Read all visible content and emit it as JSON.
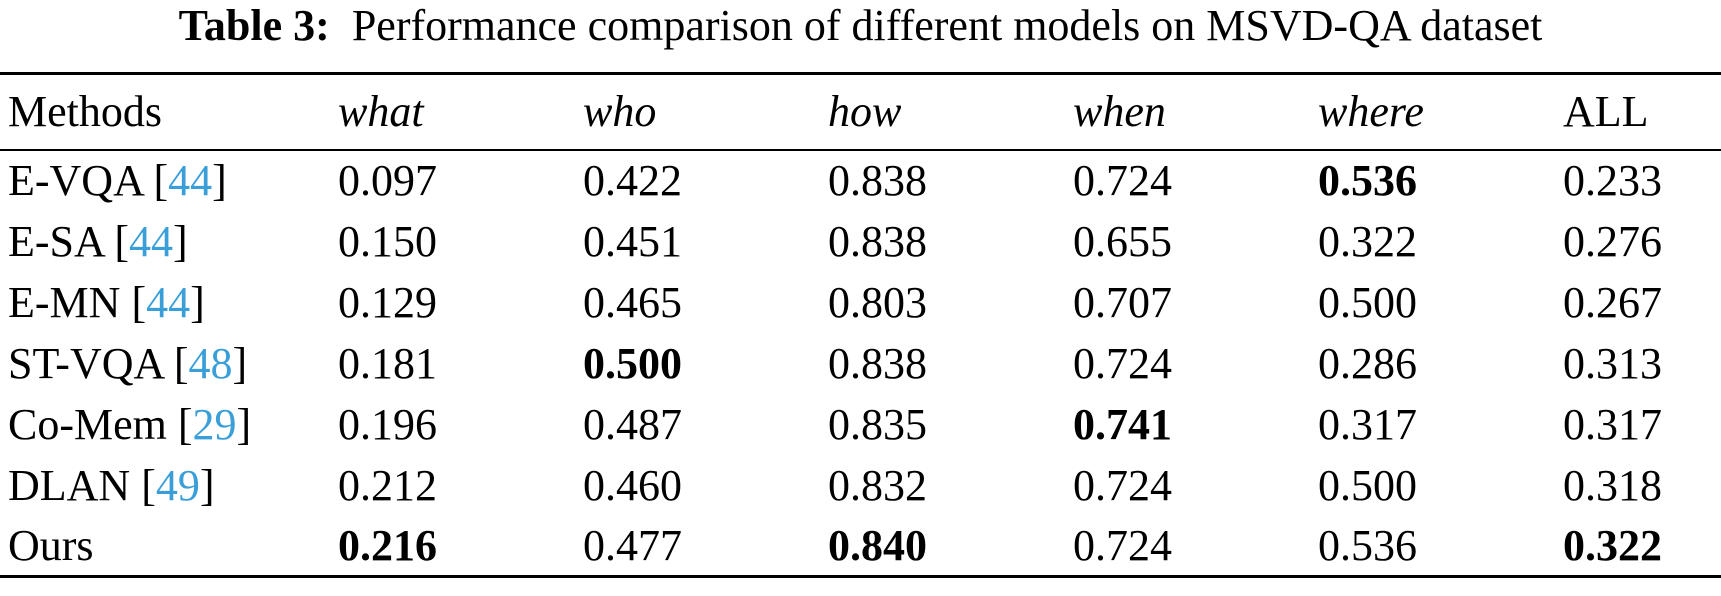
{
  "caption": {
    "label": "Table 3:",
    "text": "Performance comparison of different models on MSVD-QA dataset"
  },
  "table": {
    "headers": [
      "Methods",
      "what",
      "who",
      "how",
      "when",
      "where",
      "ALL"
    ],
    "rows": [
      {
        "method": "E-VQA",
        "ref": "44",
        "values": [
          "0.097",
          "0.422",
          "0.838",
          "0.724",
          "0.536",
          "0.233"
        ],
        "bold": [
          false,
          false,
          false,
          false,
          true,
          false
        ]
      },
      {
        "method": "E-SA",
        "ref": "44",
        "values": [
          "0.150",
          "0.451",
          "0.838",
          "0.655",
          "0.322",
          "0.276"
        ],
        "bold": [
          false,
          false,
          false,
          false,
          false,
          false
        ]
      },
      {
        "method": "E-MN",
        "ref": "44",
        "values": [
          "0.129",
          "0.465",
          "0.803",
          "0.707",
          "0.500",
          "0.267"
        ],
        "bold": [
          false,
          false,
          false,
          false,
          false,
          false
        ]
      },
      {
        "method": "ST-VQA",
        "ref": "48",
        "values": [
          "0.181",
          "0.500",
          "0.838",
          "0.724",
          "0.286",
          "0.313"
        ],
        "bold": [
          false,
          true,
          false,
          false,
          false,
          false
        ]
      },
      {
        "method": "Co-Mem",
        "ref": "29",
        "values": [
          "0.196",
          "0.487",
          "0.835",
          "0.741",
          "0.317",
          "0.317"
        ],
        "bold": [
          false,
          false,
          false,
          true,
          false,
          false
        ]
      },
      {
        "method": "DLAN",
        "ref": "49",
        "values": [
          "0.212",
          "0.460",
          "0.832",
          "0.724",
          "0.500",
          "0.318"
        ],
        "bold": [
          false,
          false,
          false,
          false,
          false,
          false
        ]
      },
      {
        "method": "Ours",
        "ref": "",
        "values": [
          "0.216",
          "0.477",
          "0.840",
          "0.724",
          "0.536",
          "0.322"
        ],
        "bold": [
          true,
          false,
          true,
          false,
          false,
          true
        ]
      }
    ]
  },
  "colors": {
    "reference_link": "#3a9fd8",
    "text": "#000000"
  }
}
